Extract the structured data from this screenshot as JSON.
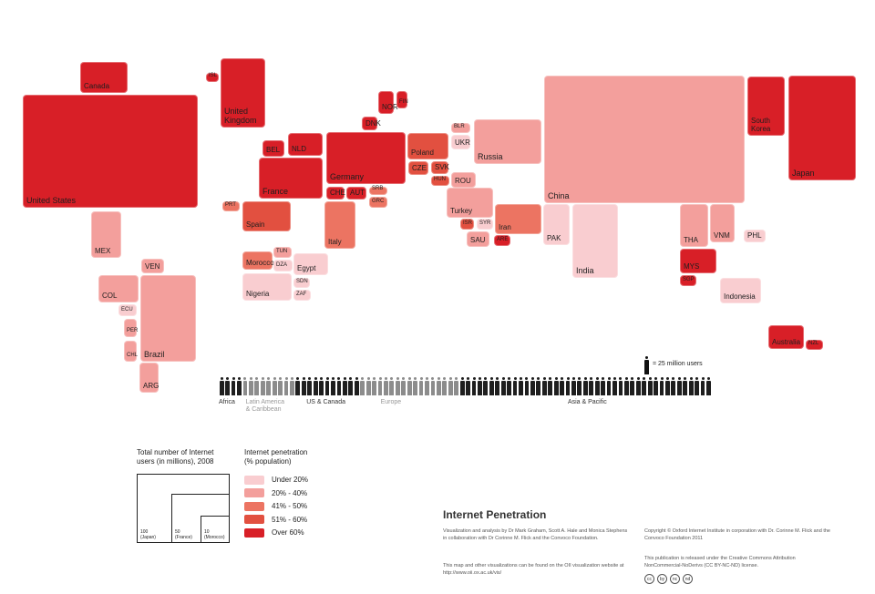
{
  "colors": {
    "under_20": "#f9cdd0",
    "b20_40": "#f39f9c",
    "b41_50": "#ec7462",
    "b51_60": "#e25040",
    "over_60": "#d81f27"
  },
  "countries": [
    {
      "id": "canada",
      "label": "Canada",
      "band": "over_60"
    },
    {
      "id": "usa",
      "label": "United States",
      "band": "over_60"
    },
    {
      "id": "mexico",
      "label": "MEX",
      "band": "b20_40"
    },
    {
      "id": "isl",
      "label": "ISL",
      "band": "over_60"
    },
    {
      "id": "uk",
      "label": "United\nKingdom",
      "band": "over_60"
    },
    {
      "id": "nor",
      "label": "NOR",
      "band": "over_60"
    },
    {
      "id": "fin",
      "label": "FIN",
      "band": "over_60"
    },
    {
      "id": "dnk",
      "label": "DNK",
      "band": "over_60"
    },
    {
      "id": "bel",
      "label": "BEL",
      "band": "over_60"
    },
    {
      "id": "nld",
      "label": "NLD",
      "band": "over_60"
    },
    {
      "id": "germany",
      "label": "Germany",
      "band": "over_60"
    },
    {
      "id": "france",
      "label": "France",
      "band": "over_60"
    },
    {
      "id": "che",
      "label": "CHE",
      "band": "over_60"
    },
    {
      "id": "aut",
      "label": "AUT",
      "band": "over_60"
    },
    {
      "id": "srb",
      "label": "SRB",
      "band": "b41_50"
    },
    {
      "id": "grc",
      "label": "GRC",
      "band": "b41_50"
    },
    {
      "id": "prt",
      "label": "PRT",
      "band": "b41_50"
    },
    {
      "id": "spain",
      "label": "Spain",
      "band": "b51_60"
    },
    {
      "id": "italy",
      "label": "Italy",
      "band": "b41_50"
    },
    {
      "id": "poland",
      "label": "Poland",
      "band": "b51_60"
    },
    {
      "id": "cze",
      "label": "CZE",
      "band": "b51_60"
    },
    {
      "id": "svk",
      "label": "SVK",
      "band": "b51_60"
    },
    {
      "id": "hun",
      "label": "HUN",
      "band": "b51_60"
    },
    {
      "id": "rou",
      "label": "ROU",
      "band": "b20_40"
    },
    {
      "id": "blr",
      "label": "BLR",
      "band": "b20_40"
    },
    {
      "id": "ukr",
      "label": "UKR",
      "band": "under_20"
    },
    {
      "id": "russia",
      "label": "Russia",
      "band": "b20_40"
    },
    {
      "id": "turkey",
      "label": "Turkey",
      "band": "b20_40"
    },
    {
      "id": "isr",
      "label": "ISR",
      "band": "b51_60"
    },
    {
      "id": "syr",
      "label": "SYR",
      "band": "under_20"
    },
    {
      "id": "sau",
      "label": "SAU",
      "band": "b20_40"
    },
    {
      "id": "are",
      "label": "ARE",
      "band": "over_60"
    },
    {
      "id": "iran",
      "label": "Iran",
      "band": "b41_50"
    },
    {
      "id": "pak",
      "label": "PAK",
      "band": "under_20"
    },
    {
      "id": "india",
      "label": "India",
      "band": "under_20"
    },
    {
      "id": "china",
      "label": "China",
      "band": "b20_40"
    },
    {
      "id": "south_korea",
      "label": "South\nKorea",
      "band": "over_60"
    },
    {
      "id": "japan",
      "label": "Japan",
      "band": "over_60"
    },
    {
      "id": "tha",
      "label": "THA",
      "band": "b20_40"
    },
    {
      "id": "vnm",
      "label": "VNM",
      "band": "b20_40"
    },
    {
      "id": "phl",
      "label": "PHL",
      "band": "under_20"
    },
    {
      "id": "mys",
      "label": "MYS",
      "band": "over_60"
    },
    {
      "id": "sgp",
      "label": "SGP",
      "band": "over_60"
    },
    {
      "id": "indonesia",
      "label": "Indonesia",
      "band": "under_20"
    },
    {
      "id": "australia",
      "label": "Australia",
      "band": "over_60"
    },
    {
      "id": "nzl",
      "label": "NZL",
      "band": "over_60"
    },
    {
      "id": "tun",
      "label": "TUN",
      "band": "b20_40"
    },
    {
      "id": "morocco",
      "label": "Morocco",
      "band": "b41_50"
    },
    {
      "id": "dza",
      "label": "DZA",
      "band": "under_20"
    },
    {
      "id": "egypt",
      "label": "Egypt",
      "band": "under_20"
    },
    {
      "id": "nigeria",
      "label": "Nigeria",
      "band": "under_20"
    },
    {
      "id": "sdn",
      "label": "SDN",
      "band": "under_20"
    },
    {
      "id": "zaf",
      "label": "ZAF",
      "band": "under_20"
    },
    {
      "id": "ven",
      "label": "VEN",
      "band": "b20_40"
    },
    {
      "id": "col",
      "label": "COL",
      "band": "b20_40"
    },
    {
      "id": "ecu",
      "label": "ECU",
      "band": "under_20"
    },
    {
      "id": "per",
      "label": "PER",
      "band": "b20_40"
    },
    {
      "id": "chl",
      "label": "CHL",
      "band": "b20_40"
    },
    {
      "id": "brazil",
      "label": "Brazil",
      "band": "b20_40"
    },
    {
      "id": "arg",
      "label": "ARG",
      "band": "b20_40"
    }
  ],
  "people_bar": {
    "scale_label": "= 25 million users",
    "regions": [
      {
        "label": "Africa",
        "count": 4,
        "tone": "dark"
      },
      {
        "label": "Latin America\n& Caribbean",
        "count": 9,
        "tone": "grey"
      },
      {
        "label": "US & Canada",
        "count": 11,
        "tone": "dark"
      },
      {
        "label": "Europe",
        "count": 17,
        "tone": "grey"
      },
      {
        "label": "Asia & Pacific",
        "count": 43,
        "tone": "dark"
      }
    ]
  },
  "legend": {
    "size_title": "Total number of Internet\nusers (in millions), 2008",
    "sizes": [
      {
        "label": "100\n(Japan)"
      },
      {
        "label": "50\n(France)"
      },
      {
        "label": "10\n(Morocco)"
      }
    ],
    "penetration_title": "Internet penetration\n(% population)",
    "bands": [
      {
        "key": "under_20",
        "label": "Under 20%"
      },
      {
        "key": "b20_40",
        "label": "20% - 40%"
      },
      {
        "key": "b41_50",
        "label": "41% - 50%"
      },
      {
        "key": "b51_60",
        "label": "51% - 60%"
      },
      {
        "key": "over_60",
        "label": "Over 60%"
      }
    ]
  },
  "footer": {
    "title": "Internet Penetration",
    "credit": "Visualization and analysis by Dr Mark Graham, Scott A. Hale and Monica Stephens in collaboration with Dr Corinne M. Flick and the Convoco Foundation.",
    "more": "This map and other visualizations can be found on the OII visualization website at http://www.oii.ox.ac.uk/vis/",
    "copyright": "Copyright © Oxford Internet Institute in corporation with Dr. Corinne M. Flick and the Convoco Foundation 2011",
    "license": "This publication is released under the Creative Commons Attribution NonCommercial-NoDerivs (CC BY-NC-ND) license.",
    "cc_icons": [
      "cc",
      "by",
      "nc",
      "nd"
    ]
  }
}
